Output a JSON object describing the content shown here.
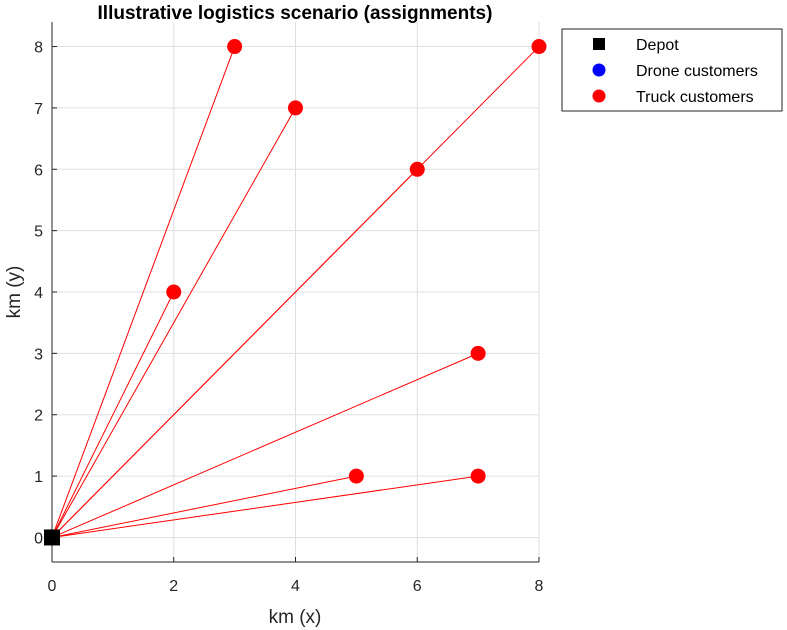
{
  "chart_data": {
    "type": "scatter",
    "title": "Illustrative logistics scenario (assignments)",
    "xlabel": "km (x)",
    "ylabel": "km (y)",
    "xlim": [
      0,
      8
    ],
    "ylim": [
      -0.4,
      8.4
    ],
    "xticks": [
      "0",
      "2",
      "4",
      "6",
      "8"
    ],
    "yticks": [
      "0",
      "1",
      "2",
      "3",
      "4",
      "5",
      "6",
      "7",
      "8"
    ],
    "grid": true,
    "legend_position": "outside-top-right",
    "depot": {
      "x": 0,
      "y": 0
    },
    "series": [
      {
        "name": "Depot",
        "marker": "square",
        "color": "#000000",
        "points": [
          [
            0,
            0
          ]
        ]
      },
      {
        "name": "Drone customers",
        "marker": "circle",
        "color": "#0000ff",
        "points": []
      },
      {
        "name": "Truck customers",
        "marker": "circle",
        "color": "#ff0000",
        "points": [
          [
            3,
            8
          ],
          [
            4,
            7
          ],
          [
            8,
            8
          ],
          [
            6,
            6
          ],
          [
            2,
            4
          ],
          [
            7,
            3
          ],
          [
            5,
            1
          ],
          [
            7,
            1
          ]
        ]
      }
    ],
    "routes": {
      "color": "#ff0000",
      "from": [
        0,
        0
      ],
      "to": [
        [
          3,
          8
        ],
        [
          4,
          7
        ],
        [
          8,
          8
        ],
        [
          6,
          6
        ],
        [
          2,
          4
        ],
        [
          7,
          3
        ],
        [
          5,
          1
        ],
        [
          7,
          1
        ]
      ]
    }
  }
}
